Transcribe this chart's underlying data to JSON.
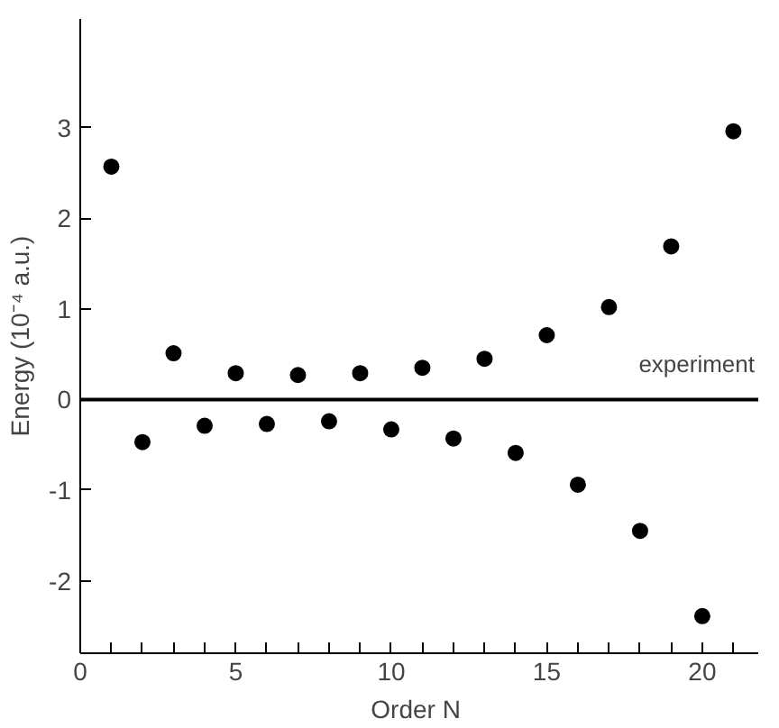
{
  "chart_data": {
    "type": "scatter",
    "xlabel": "Order  N",
    "ylabel": "Energy (10⁻⁴ a.u.)",
    "x": [
      1,
      2,
      3,
      4,
      5,
      6,
      7,
      8,
      9,
      10,
      11,
      12,
      13,
      14,
      15,
      16,
      17,
      18,
      19,
      20,
      21
    ],
    "series": [
      {
        "color": "#000000",
        "values": [
          2.57,
          -0.47,
          0.51,
          -0.29,
          0.29,
          -0.27,
          0.27,
          -0.24,
          0.29,
          -0.33,
          0.35,
          -0.43,
          0.45,
          -0.59,
          0.71,
          -0.94,
          1.02,
          -1.45,
          1.69,
          -2.39,
          2.96
        ]
      }
    ],
    "xlim": [
      0,
      21.8
    ],
    "ylim": [
      -2.8,
      4.2
    ],
    "xticks": [
      0,
      {
        "value": 1,
        "label": null
      },
      {
        "value": 2,
        "label": null
      },
      {
        "value": 3,
        "label": null
      },
      {
        "value": 4,
        "label": null
      },
      5,
      {
        "value": 6,
        "label": null
      },
      {
        "value": 7,
        "label": null
      },
      {
        "value": 8,
        "label": null
      },
      {
        "value": 9,
        "label": null
      },
      10,
      {
        "value": 11,
        "label": null
      },
      {
        "value": 12,
        "label": null
      },
      {
        "value": 13,
        "label": null
      },
      {
        "value": 14,
        "label": null
      },
      15,
      {
        "value": 16,
        "label": null
      },
      {
        "value": 17,
        "label": null
      },
      {
        "value": 18,
        "label": null
      },
      {
        "value": 19,
        "label": null
      },
      20,
      {
        "value": 21,
        "label": null
      }
    ],
    "yticks": [
      -2,
      -1,
      0,
      1,
      2,
      3
    ],
    "ref_lines": [
      {
        "axis": "y",
        "value": 0,
        "label": "experiment",
        "color": "#000000"
      }
    ],
    "marker": "circle"
  }
}
